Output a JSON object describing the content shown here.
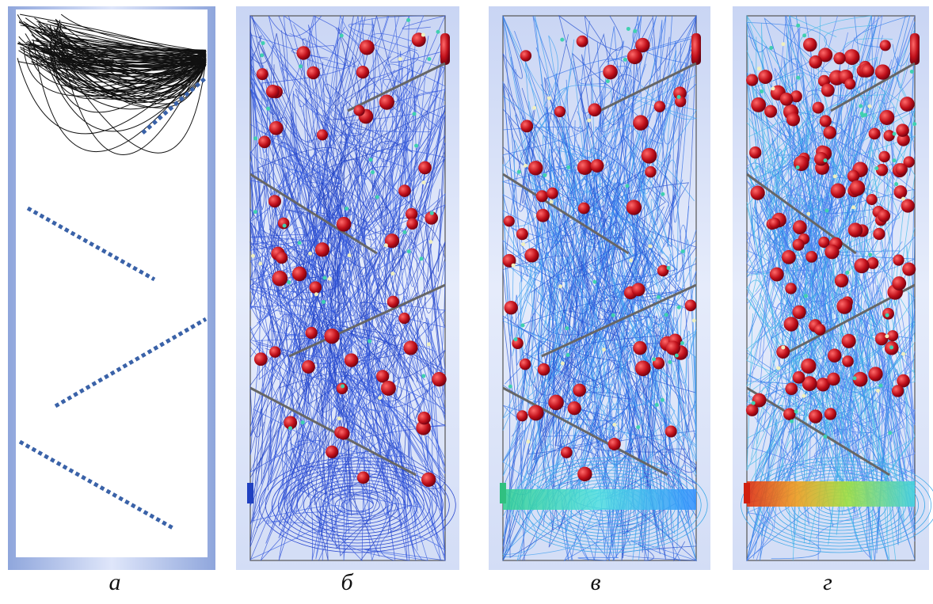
{
  "figure": {
    "captions": [
      "а",
      "б",
      "в",
      "г"
    ]
  }
}
